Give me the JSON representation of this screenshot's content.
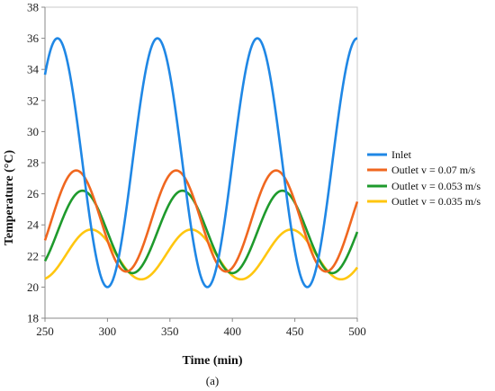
{
  "chart_data": {
    "type": "line",
    "xlabel": "Time (min)",
    "ylabel": "Temperature (°C)",
    "caption": "(a)",
    "xlim": [
      250,
      500
    ],
    "ylim": [
      18,
      38
    ],
    "xticks": [
      250,
      300,
      350,
      400,
      450,
      500
    ],
    "yticks": [
      18,
      20,
      22,
      24,
      26,
      28,
      30,
      32,
      34,
      36,
      38
    ],
    "grid": false,
    "legend_position": "right",
    "period_min": 80,
    "series": [
      {
        "name": "Inlet",
        "color": "#1f87e5",
        "mean": 28,
        "amplitude": 8,
        "peak_time": 260
      },
      {
        "name": "Outlet v = 0.07 m/s",
        "color": "#f0671f",
        "mean": 24.25,
        "amplitude": 3.25,
        "peak_time": 275
      },
      {
        "name": "Outlet v = 0.053 m/s",
        "color": "#1e9a2c",
        "mean": 23.55,
        "amplitude": 2.65,
        "peak_time": 280
      },
      {
        "name": "Outlet v = 0.035 m/s",
        "color": "#ffc60f",
        "mean": 22.1,
        "amplitude": 1.6,
        "peak_time": 287
      }
    ]
  }
}
